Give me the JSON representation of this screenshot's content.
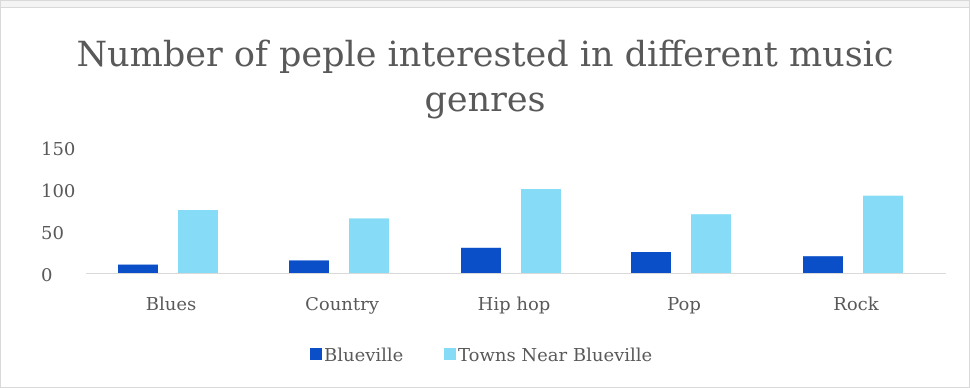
{
  "chart_data": {
    "type": "bar",
    "title_lines": [
      "Number of peple interested in different music",
      "genres"
    ],
    "categories": [
      "Blues",
      "Country",
      "Hip hop",
      "Pop",
      "Rock"
    ],
    "series": [
      {
        "name": "Blueville",
        "values": [
          10,
          15,
          30,
          25,
          20
        ],
        "color": "#0a4fc8"
      },
      {
        "name": "Towns Near Blueville",
        "values": [
          75,
          65,
          100,
          70,
          92
        ],
        "color": "#86dcf7"
      }
    ],
    "y_ticks": [
      "150",
      "100",
      "50",
      "0"
    ],
    "ylim": [
      0,
      150
    ],
    "grid": false,
    "legend_position": "bottom"
  },
  "colors": {
    "axis": "#d9d9d9",
    "text": "#595959"
  }
}
